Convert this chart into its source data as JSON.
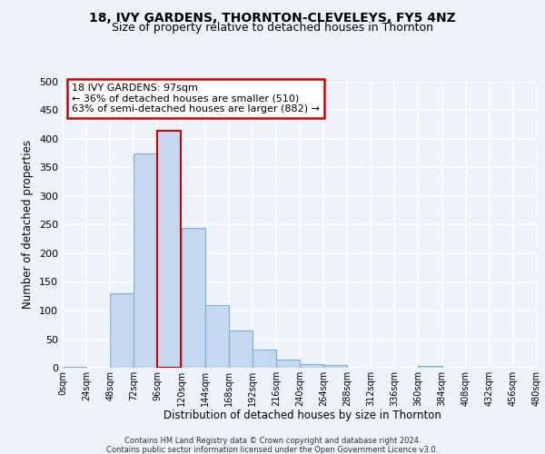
{
  "title": "18, IVY GARDENS, THORNTON-CLEVELEYS, FY5 4NZ",
  "subtitle": "Size of property relative to detached houses in Thornton",
  "xlabel": "Distribution of detached houses by size in Thornton",
  "ylabel": "Number of detached properties",
  "footnote1": "Contains HM Land Registry data © Crown copyright and database right 2024.",
  "footnote2": "Contains public sector information licensed under the Open Government Licence v3.0.",
  "annotation_line1": "18 IVY GARDENS: 97sqm",
  "annotation_line2": "← 36% of detached houses are smaller (510)",
  "annotation_line3": "63% of semi-detached houses are larger (882) →",
  "bin_edges": [
    0,
    24,
    48,
    72,
    96,
    120,
    144,
    168,
    192,
    216,
    240,
    264,
    288,
    312,
    336,
    360,
    384,
    408,
    432,
    456,
    480
  ],
  "bin_values": [
    2,
    0,
    130,
    375,
    415,
    245,
    110,
    65,
    32,
    15,
    7,
    5,
    0,
    0,
    0,
    3,
    0,
    0,
    0,
    0
  ],
  "bar_color": "#c5d8f0",
  "bar_edgecolor": "#7bafd4",
  "highlight_bar_index": 4,
  "highlight_bar_edgecolor": "#cc0000",
  "ylim": [
    0,
    500
  ],
  "yticks": [
    0,
    50,
    100,
    150,
    200,
    250,
    300,
    350,
    400,
    450,
    500
  ],
  "background_color": "#eef2fb",
  "plot_background": "#eef2fb",
  "grid_color": "#ffffff",
  "title_fontsize": 10,
  "subtitle_fontsize": 9,
  "annotation_box_edgecolor": "#cc0000",
  "annotation_box_facecolor": "#ffffff"
}
